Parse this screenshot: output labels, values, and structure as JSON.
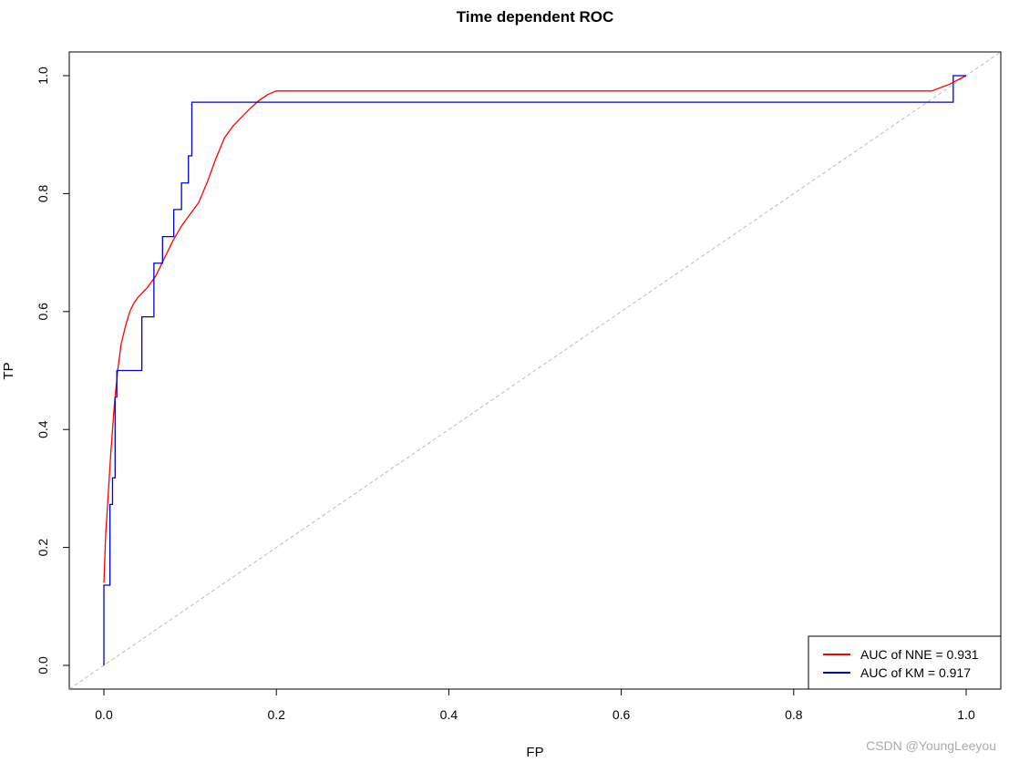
{
  "watermark": "CSDN @YoungLeeyou",
  "chart_data": {
    "type": "line",
    "title": "Time dependent ROC",
    "xlabel": "FP",
    "ylabel": "TP",
    "xlim": [
      0,
      1
    ],
    "ylim": [
      0,
      1
    ],
    "xticks": [
      0.0,
      0.2,
      0.4,
      0.6,
      0.8,
      1.0
    ],
    "yticks": [
      0.0,
      0.2,
      0.4,
      0.6,
      0.8,
      1.0
    ],
    "tick_labels": [
      "0.0",
      "0.2",
      "0.4",
      "0.6",
      "0.8",
      "1.0"
    ],
    "grid": false,
    "legend_position": "bottom-right",
    "diagonal_reference": {
      "x": [
        0,
        1
      ],
      "y": [
        0,
        1
      ],
      "color": "#bbbbbb",
      "style": "dashed"
    },
    "series": [
      {
        "name": "AUC of NNE = 0.931",
        "color": "#ff0000",
        "x": [
          0.0,
          0.002,
          0.005,
          0.008,
          0.012,
          0.016,
          0.02,
          0.025,
          0.03,
          0.035,
          0.04,
          0.05,
          0.06,
          0.07,
          0.08,
          0.09,
          0.1,
          0.11,
          0.12,
          0.13,
          0.14,
          0.15,
          0.16,
          0.17,
          0.18,
          0.19,
          0.2,
          0.3,
          0.5,
          0.7,
          0.9,
          0.96,
          0.98,
          1.0
        ],
        "y": [
          0.14,
          0.22,
          0.29,
          0.36,
          0.44,
          0.5,
          0.545,
          0.575,
          0.6,
          0.615,
          0.625,
          0.64,
          0.66,
          0.69,
          0.72,
          0.745,
          0.765,
          0.785,
          0.82,
          0.86,
          0.895,
          0.915,
          0.93,
          0.945,
          0.958,
          0.968,
          0.974,
          0.974,
          0.974,
          0.974,
          0.974,
          0.974,
          0.985,
          1.0
        ]
      },
      {
        "name": "AUC of KM = 0.917",
        "color": "#0000cc",
        "step": true,
        "x": [
          0.0,
          0.0,
          0.007,
          0.007,
          0.01,
          0.01,
          0.013,
          0.013,
          0.015,
          0.015,
          0.044,
          0.044,
          0.058,
          0.058,
          0.068,
          0.068,
          0.081,
          0.081,
          0.09,
          0.09,
          0.098,
          0.098,
          0.102,
          0.102,
          0.985,
          0.985,
          1.0
        ],
        "y": [
          0.0,
          0.136,
          0.136,
          0.273,
          0.273,
          0.318,
          0.318,
          0.455,
          0.455,
          0.5,
          0.5,
          0.591,
          0.591,
          0.682,
          0.682,
          0.727,
          0.727,
          0.773,
          0.773,
          0.818,
          0.818,
          0.864,
          0.864,
          0.955,
          0.955,
          1.0,
          1.0
        ]
      }
    ]
  }
}
